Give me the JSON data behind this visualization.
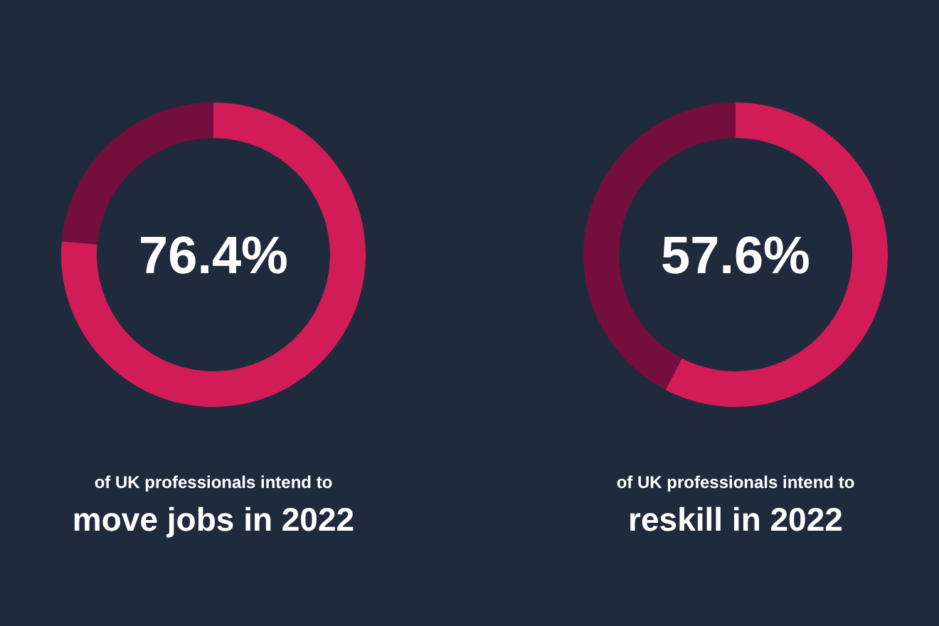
{
  "chart_data": [
    {
      "type": "donut",
      "subtitle": "of UK professionals intend to",
      "title": "move jobs in 2022",
      "categories": [
        null,
        null
      ],
      "values": [
        76.4,
        23.6
      ],
      "colors": [
        "#d21c58",
        "#740e3e"
      ],
      "value_labels": [
        "76.4%",
        null
      ]
    },
    {
      "type": "donut",
      "subtitle": "of UK professionals intend to",
      "title": "reskill in 2022",
      "categories": [
        null,
        null
      ],
      "values": [
        57.6,
        42.4
      ],
      "colors": [
        "#d21c58",
        "#740e3e"
      ],
      "value_labels": [
        "57.6%",
        null
      ]
    }
  ]
}
